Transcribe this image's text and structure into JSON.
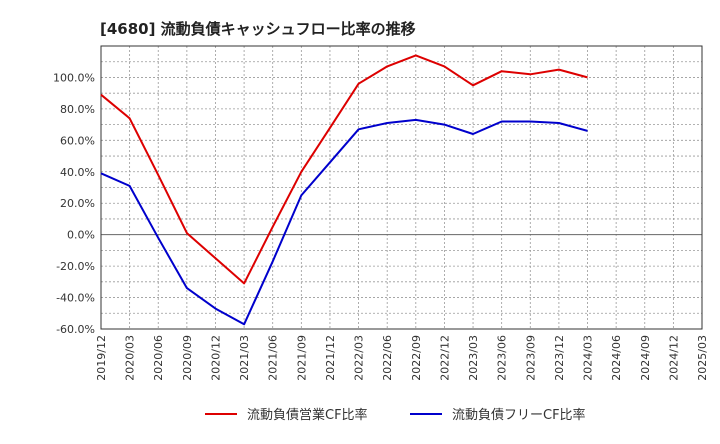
{
  "chart_data": {
    "type": "line",
    "title": "[4680]  流動負債キャッシュフロー比率の推移",
    "x_ticks": [
      "2019/12",
      "2020/03",
      "2020/06",
      "2020/09",
      "2020/12",
      "2021/03",
      "2021/06",
      "2021/09",
      "2021/12",
      "2022/03",
      "2022/06",
      "2022/09",
      "2022/12",
      "2023/03",
      "2023/06",
      "2023/09",
      "2023/12",
      "2024/03",
      "2024/06",
      "2024/09",
      "2024/12",
      "2025/03"
    ],
    "y_ticks": [
      "-60.0%",
      "-40.0%",
      "-20.0%",
      "0.0%",
      "20.0%",
      "40.0%",
      "60.0%",
      "80.0%",
      "100.0%"
    ],
    "y_tick_values": [
      -60,
      -40,
      -20,
      0,
      20,
      40,
      60,
      80,
      100
    ],
    "ylim": [
      -60,
      120
    ],
    "grid": true,
    "legend_position": "bottom",
    "series": [
      {
        "name": "流動負債営業CF比率",
        "color": "#dd0000",
        "x": [
          "2019/12",
          "2020/03",
          "2020/06",
          "2020/09",
          "2020/12",
          "2021/03",
          "2021/06",
          "2021/09",
          "2021/12",
          "2022/03",
          "2022/06",
          "2022/09",
          "2022/12",
          "2023/03",
          "2023/06",
          "2023/09",
          "2023/12",
          "2024/03"
        ],
        "values": [
          89,
          74,
          38,
          1,
          -15,
          -31,
          5,
          40,
          68,
          96,
          107,
          114,
          107,
          95,
          104,
          102,
          105,
          100
        ]
      },
      {
        "name": "流動負債フリーCF比率",
        "color": "#0000cc",
        "x": [
          "2019/12",
          "2020/03",
          "2020/06",
          "2020/09",
          "2020/12",
          "2021/03",
          "2021/06",
          "2021/09",
          "2021/12",
          "2022/03",
          "2022/06",
          "2022/09",
          "2022/12",
          "2023/03",
          "2023/06",
          "2023/09",
          "2023/12",
          "2024/03"
        ],
        "values": [
          39,
          31,
          -2,
          -34,
          -47,
          -57,
          -17,
          25,
          46,
          67,
          71,
          73,
          70,
          64,
          72,
          72,
          71,
          66
        ]
      }
    ]
  }
}
